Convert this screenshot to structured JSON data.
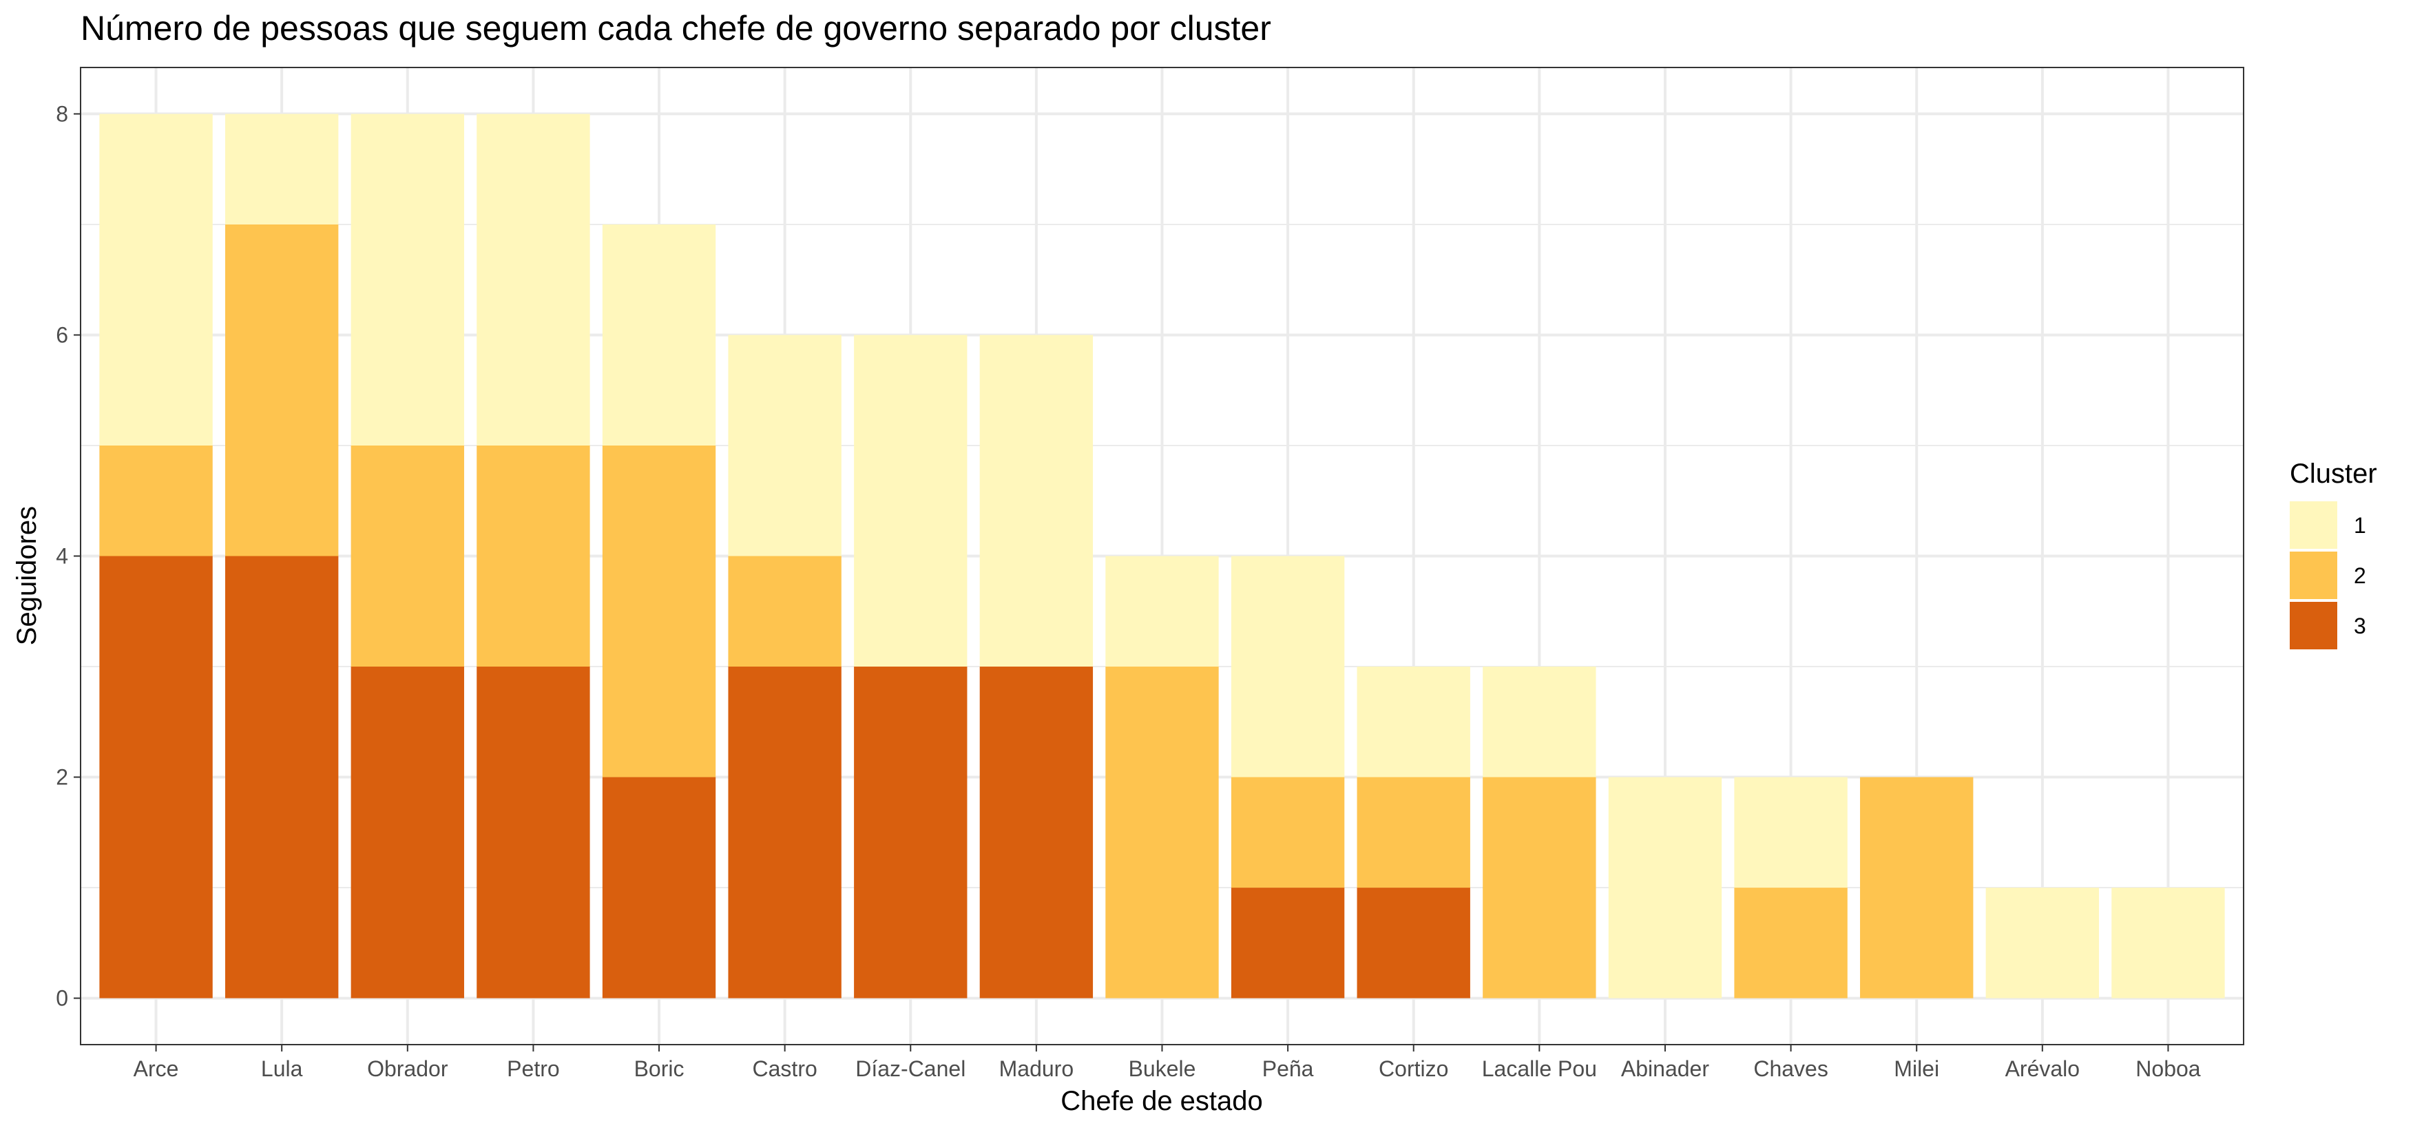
{
  "chart_data": {
    "type": "bar",
    "stacked": true,
    "title": "Número de pessoas que seguem cada chefe de governo separado por cluster",
    "xlabel": "Chefe de estado",
    "ylabel": "Seguidores",
    "ylim": [
      -0.42,
      8.42
    ],
    "y_ticks": [
      "0",
      "2",
      "4",
      "6",
      "8"
    ],
    "grid": true,
    "categories": [
      "Arce",
      "Lula",
      "Obrador",
      "Petro",
      "Boric",
      "Castro",
      "Díaz-Canel",
      "Maduro",
      "Bukele",
      "Peña",
      "Cortizo",
      "Lacalle Pou",
      "Abinader",
      "Chaves",
      "Milei",
      "Arévalo",
      "Noboa"
    ],
    "series": [
      {
        "name": "3",
        "color": "#d95f0e",
        "values": [
          4,
          4,
          3,
          3,
          2,
          3,
          3,
          3,
          0,
          1,
          1,
          0,
          0,
          0,
          0,
          0,
          0
        ]
      },
      {
        "name": "2",
        "color": "#fec44f",
        "values": [
          1,
          3,
          2,
          2,
          3,
          1,
          0,
          0,
          3,
          1,
          1,
          2,
          0,
          1,
          2,
          0,
          0
        ]
      },
      {
        "name": "1",
        "color": "#fff7bc",
        "values": [
          3,
          1,
          3,
          3,
          2,
          2,
          3,
          3,
          1,
          2,
          1,
          1,
          2,
          1,
          0,
          1,
          1
        ]
      }
    ],
    "legend": {
      "title": "Cluster",
      "position": "right",
      "entries": [
        {
          "label": "1",
          "color": "#fff7bc"
        },
        {
          "label": "2",
          "color": "#fec44f"
        },
        {
          "label": "3",
          "color": "#d95f0e"
        }
      ]
    }
  }
}
